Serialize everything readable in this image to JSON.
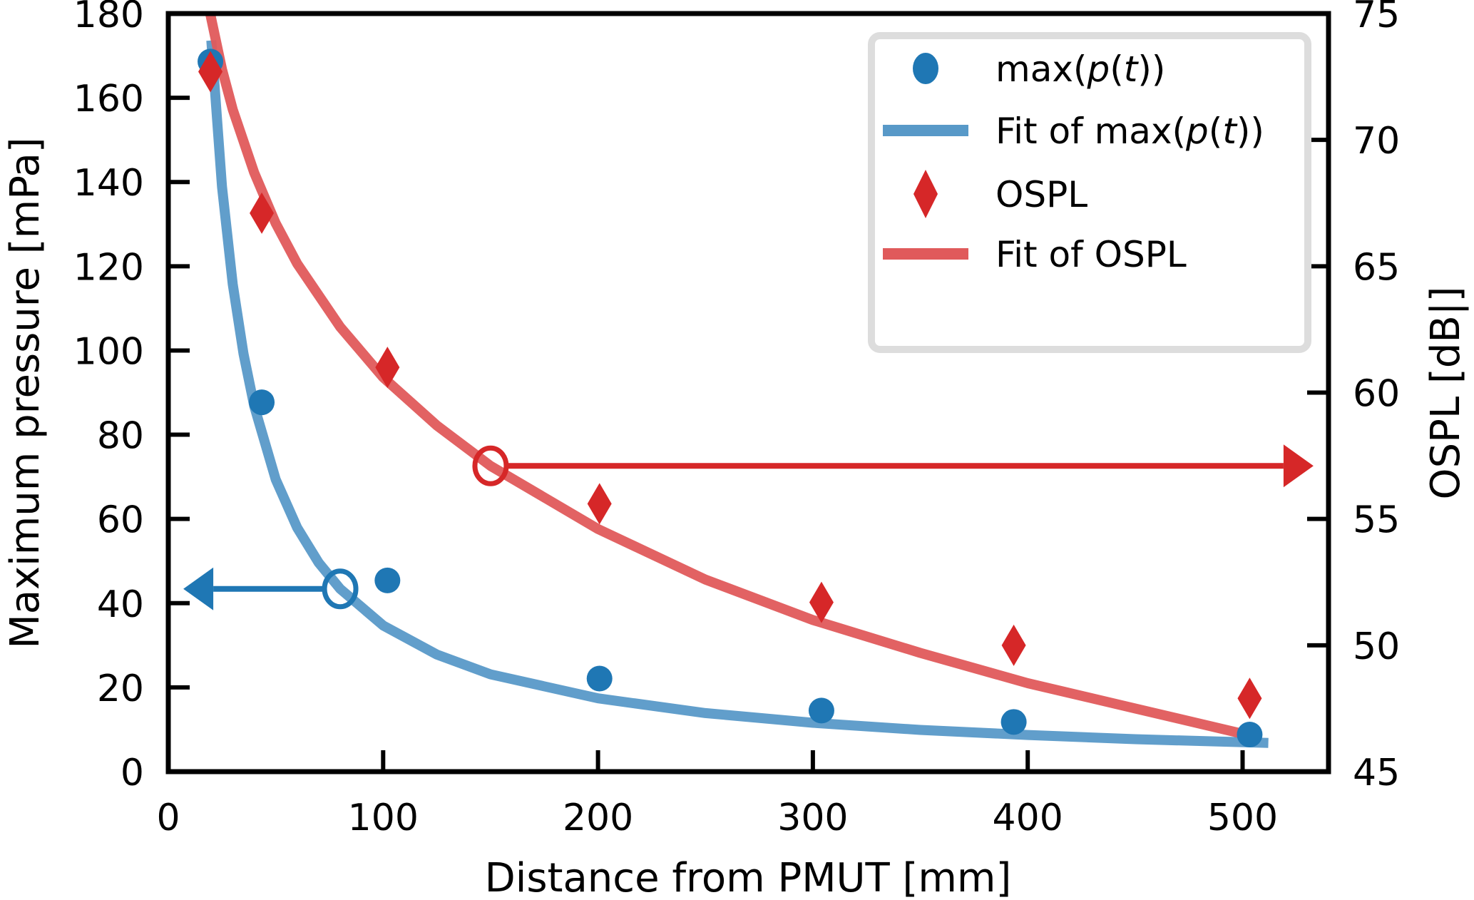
{
  "chart_data": {
    "type": "scatter",
    "title": "",
    "xlabel": "Distance from PMUT [mm]",
    "ylabel_left": "Maximum pressure [mPa]",
    "ylabel_right": "OSPL [dB|]",
    "xlim": [
      0,
      540
    ],
    "ylim_left": [
      0,
      180
    ],
    "ylim_right": [
      45,
      75
    ],
    "x_ticks": [
      0,
      100,
      200,
      300,
      400,
      500
    ],
    "y_ticks_left": [
      0,
      20,
      40,
      60,
      80,
      100,
      120,
      140,
      160,
      180
    ],
    "y_ticks_right": [
      45,
      50,
      55,
      60,
      65,
      70,
      75
    ],
    "grid": false,
    "legend_position": "top-right",
    "colors": {
      "pressure_points": "#1f77b4",
      "pressure_fit": "#5899c8",
      "ospl_points": "#d62728",
      "ospl_fit": "#e05a5b",
      "legend_border": "#dddddd"
    },
    "series": [
      {
        "name": "max(p(t))",
        "axis": "left",
        "kind": "points",
        "marker": "circle",
        "x": [
          19.6,
          43.5,
          102,
          200.7,
          304,
          393.5,
          503.3
        ],
        "y": [
          168.6,
          87.7,
          45.4,
          22.1,
          14.5,
          11.8,
          8.8
        ]
      },
      {
        "name": "Fit of max(p(t))",
        "axis": "left",
        "kind": "line",
        "x": [
          20,
          25,
          30,
          35,
          40,
          50,
          60,
          70,
          80,
          100,
          125,
          150,
          200,
          250,
          300,
          350,
          400,
          450,
          512
        ],
        "y": [
          173.6,
          138.9,
          115.7,
          99.2,
          86.8,
          69.4,
          57.9,
          49.6,
          43.4,
          34.7,
          27.8,
          23.1,
          17.4,
          13.9,
          11.6,
          9.9,
          8.7,
          7.7,
          6.8
        ]
      },
      {
        "name": "OSPL",
        "axis": "right",
        "kind": "points",
        "marker": "diamond",
        "x": [
          19.6,
          43.5,
          102,
          200.7,
          304,
          393.5,
          503.3
        ],
        "y": [
          72.7,
          67.1,
          61.0,
          55.6,
          51.7,
          50.0,
          47.9
        ]
      },
      {
        "name": "Fit of OSPL",
        "axis": "right",
        "kind": "line",
        "x": [
          19,
          25,
          30,
          40,
          50,
          60,
          80,
          100,
          125,
          150,
          200,
          250,
          300,
          350,
          400,
          450,
          505
        ],
        "y": [
          75.2,
          72.8,
          71.2,
          68.7,
          66.7,
          65.1,
          62.6,
          60.6,
          58.7,
          57.1,
          54.6,
          52.6,
          51.0,
          49.7,
          48.5,
          47.5,
          46.4
        ]
      }
    ],
    "annotations": [
      {
        "name": "pressure-axis-marker",
        "kind": "open-circle",
        "axis": "left",
        "x": 80,
        "y": 43.4,
        "color": "#1f77b4",
        "arrow_to_x": 7,
        "arrow_direction": "left"
      },
      {
        "name": "ospl-axis-marker",
        "kind": "open-circle",
        "axis": "right",
        "x": 150,
        "y": 57.1,
        "color": "#d62728",
        "arrow_to_x": 533,
        "arrow_direction": "right"
      }
    ],
    "legend": [
      {
        "label": "max(p(t))",
        "label_parts": [
          "max(",
          "p",
          "(",
          "t",
          "))"
        ],
        "marker": "circle",
        "color": "#1f77b4"
      },
      {
        "label": "Fit of max(p(t))",
        "label_parts": [
          "Fit of max(",
          "p",
          "(",
          "t",
          "))"
        ],
        "marker": "line",
        "color": "#5899c8"
      },
      {
        "label": "OSPL",
        "label_parts": [
          "OSPL"
        ],
        "marker": "diamond",
        "color": "#d62728"
      },
      {
        "label": "Fit of OSPL",
        "label_parts": [
          "Fit of OSPL"
        ],
        "marker": "line",
        "color": "#e05a5b"
      }
    ]
  }
}
